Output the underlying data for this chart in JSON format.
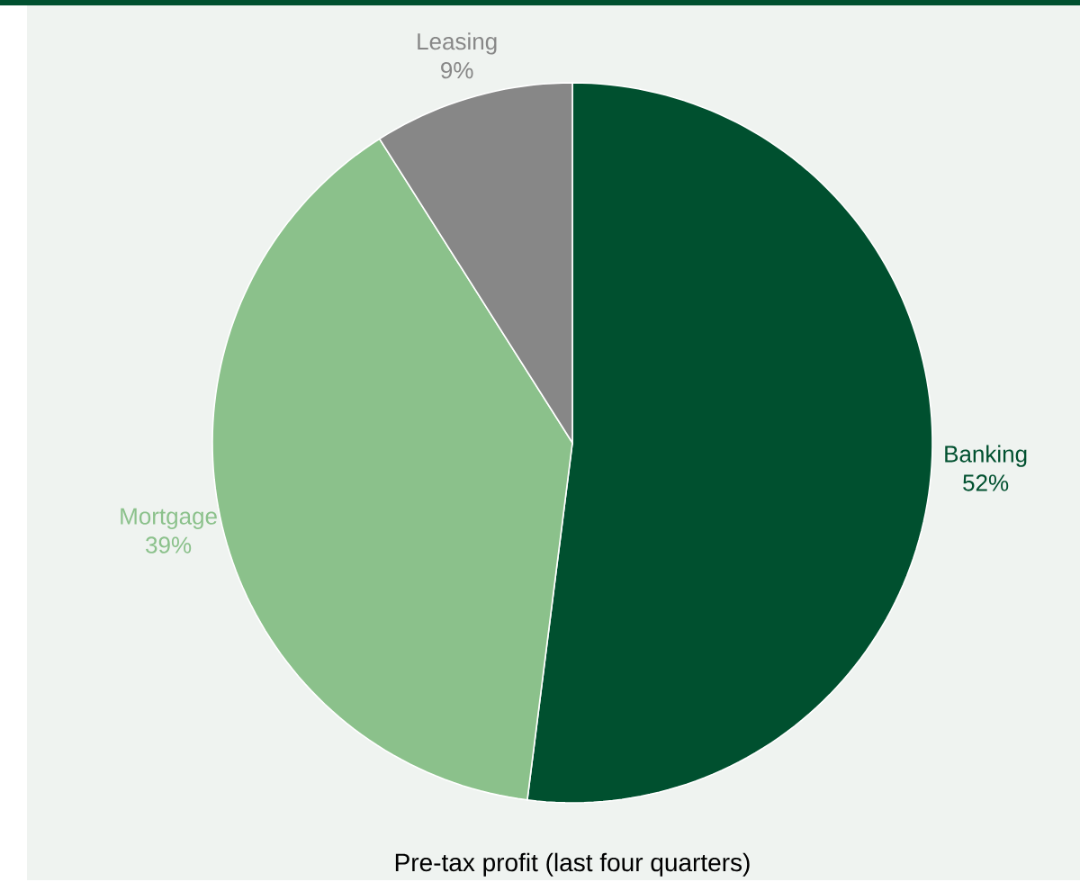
{
  "chart_data": {
    "type": "pie",
    "title": "Pre-tax profit (last four quarters)",
    "categories": [
      "Banking",
      "Mortgage",
      "Leasing"
    ],
    "values": [
      52,
      39,
      9
    ],
    "value_labels": [
      "52%",
      "39%",
      "9%"
    ],
    "colors": [
      "#00502f",
      "#8bc18b",
      "#878787"
    ]
  }
}
